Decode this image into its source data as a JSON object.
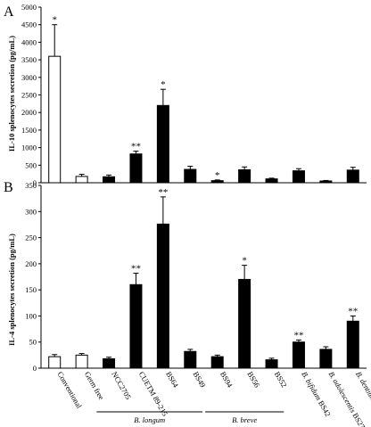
{
  "colors": {
    "black_bar": "#000000",
    "white_bar": "#ffffff",
    "axis": "#000000"
  },
  "categories": [
    {
      "label": "Conventional",
      "fill": "white",
      "italic_part": "",
      "rest_part": "Conventional"
    },
    {
      "label": "Germ free",
      "fill": "white",
      "italic_part": "",
      "rest_part": "Germ free"
    },
    {
      "label": "NCC2705",
      "fill": "black",
      "italic_part": "",
      "rest_part": "NCC2705"
    },
    {
      "label": "CUETM 89-215",
      "fill": "black",
      "italic_part": "",
      "rest_part": "CUETM 89-215"
    },
    {
      "label": "BS64",
      "fill": "black",
      "italic_part": "",
      "rest_part": "BS64"
    },
    {
      "label": "BS49",
      "fill": "black",
      "italic_part": "",
      "rest_part": "BS49"
    },
    {
      "label": "BS94",
      "fill": "black",
      "italic_part": "",
      "rest_part": "BS94"
    },
    {
      "label": "BS56",
      "fill": "black",
      "italic_part": "",
      "rest_part": "BS56"
    },
    {
      "label": "BS52",
      "fill": "black",
      "italic_part": "",
      "rest_part": "BS52"
    },
    {
      "label": "B. bifidum BS42",
      "fill": "black",
      "italic_part": "B. bifidum",
      "rest_part": " BS42"
    },
    {
      "label": "B. adolescentis BS27",
      "fill": "black",
      "italic_part": "B. adolescentis",
      "rest_part": " BS27"
    },
    {
      "label": "B. dentium BS21",
      "fill": "black",
      "italic_part": "B. dentium",
      "rest_part": " BS21"
    }
  ],
  "groups": [
    {
      "label": "B. longum",
      "from": 2,
      "to": 5
    },
    {
      "label": "B. breve",
      "from": 6,
      "to": 8
    }
  ],
  "chart_data": [
    {
      "panel": "A",
      "type": "bar",
      "ylabel": "IL-10 splenocytes secretion (pg/mL)",
      "ylim": [
        0,
        5000
      ],
      "yticks": [
        0,
        500,
        1000,
        1500,
        2000,
        2500,
        3000,
        3500,
        4000,
        4500,
        5000
      ],
      "categories": [
        "Conventional",
        "Germ free",
        "NCC2705",
        "CUETM 89-215",
        "BS64",
        "BS49",
        "BS94",
        "BS56",
        "BS52",
        "B. bifidum BS42",
        "B. adolescentis BS27",
        "B. dentium BS21"
      ],
      "values": [
        3600,
        180,
        170,
        820,
        2200,
        380,
        60,
        370,
        110,
        340,
        50,
        360
      ],
      "errors": [
        900,
        60,
        50,
        80,
        460,
        90,
        20,
        80,
        20,
        60,
        15,
        80
      ],
      "significance": [
        "*",
        "",
        "",
        "**",
        "*",
        "",
        "*",
        "",
        "",
        "",
        "",
        ""
      ]
    },
    {
      "panel": "B",
      "type": "bar",
      "ylabel": "IL-4 splenocytes secretion (pg/mL)",
      "ylim": [
        0,
        350
      ],
      "yticks": [
        0,
        50,
        100,
        150,
        200,
        250,
        300,
        350
      ],
      "categories": [
        "Conventional",
        "Germ free",
        "NCC2705",
        "CUETM 89-215",
        "BS64",
        "BS49",
        "BS94",
        "BS56",
        "BS52",
        "B. bifidum BS42",
        "B. adolescentis BS27",
        "B. dentium BS21"
      ],
      "values": [
        22,
        25,
        18,
        160,
        276,
        32,
        22,
        170,
        16,
        50,
        36,
        90
      ],
      "errors": [
        4,
        3,
        3,
        22,
        52,
        4,
        3,
        27,
        3,
        4,
        5,
        10
      ],
      "significance": [
        "",
        "",
        "",
        "**",
        "**",
        "",
        "",
        "*",
        "",
        "**",
        "",
        "**"
      ]
    }
  ]
}
